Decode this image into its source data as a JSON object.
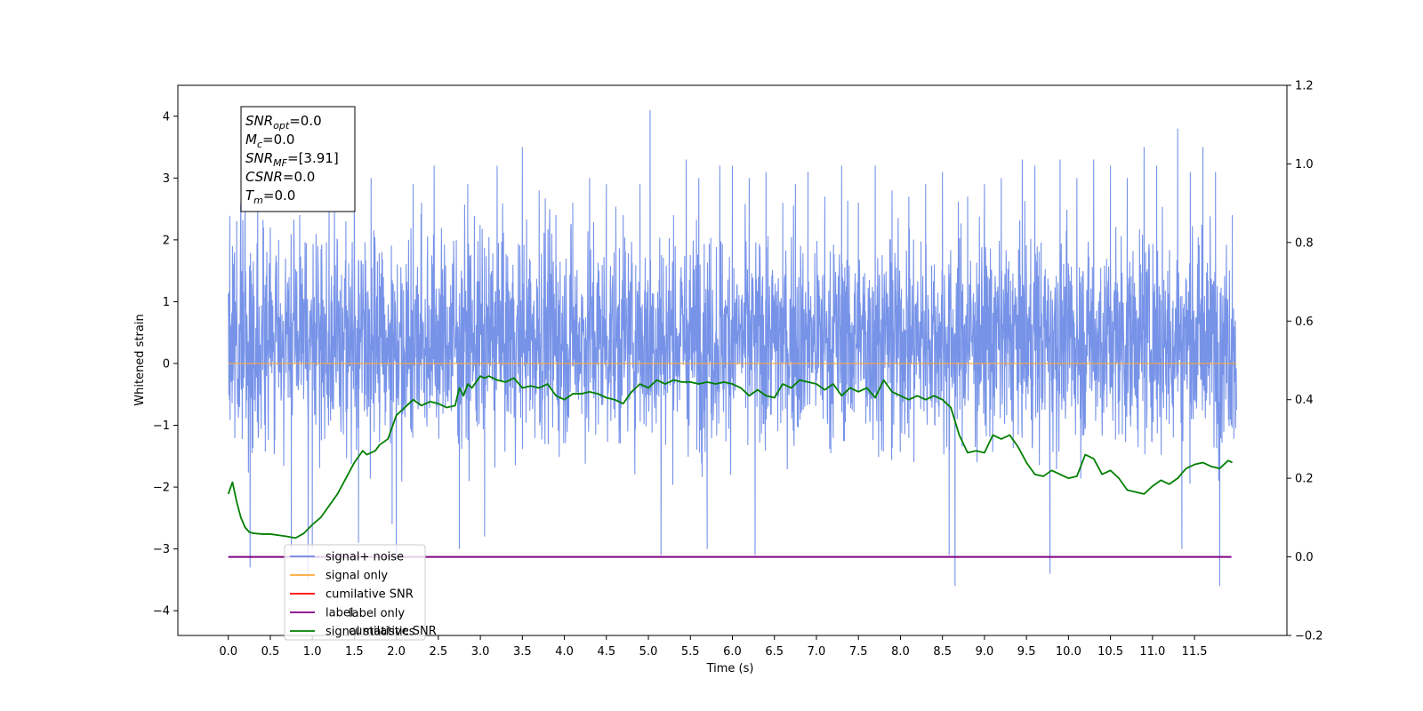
{
  "chart_data": {
    "type": "line",
    "xlabel": "Time (s)",
    "ylabel": "Whitened strain",
    "xlim": [
      -0.6,
      12.6
    ],
    "ylim": [
      -4.4,
      4.5
    ],
    "ylim_right": [
      -0.2,
      1.2
    ],
    "x_ticks": [
      0.0,
      0.5,
      1.0,
      1.5,
      2.0,
      2.5,
      3.0,
      3.5,
      4.0,
      4.5,
      5.0,
      5.5,
      6.0,
      6.5,
      7.0,
      7.5,
      8.0,
      8.5,
      9.0,
      9.5,
      10.0,
      10.5,
      11.0,
      11.5
    ],
    "x_tick_labels": [
      "0.0",
      "0.5",
      "1.0",
      "1.5",
      "2.0",
      "2.5",
      "3.0",
      "3.5",
      "4.0",
      "4.5",
      "5.0",
      "5.5",
      "6.0",
      "6.5",
      "7.0",
      "7.5",
      "8.0",
      "8.5",
      "9.0",
      "9.5",
      "10.0",
      "10.5",
      "11.0",
      "11.5"
    ],
    "y_ticks": [
      -4,
      -3,
      -2,
      -1,
      0,
      1,
      2,
      3,
      4
    ],
    "y_tick_labels": [
      "−4",
      "−3",
      "−2",
      "−1",
      "0",
      "1",
      "2",
      "3",
      "4"
    ],
    "y_right_ticks": [
      -0.2,
      0.0,
      0.2,
      0.4,
      0.6,
      0.8,
      1.0,
      1.2
    ],
    "y_right_tick_labels": [
      "−0.2",
      "0.0",
      "0.2",
      "0.4",
      "0.6",
      "0.8",
      "1.0",
      "1.2"
    ],
    "grid": false,
    "legend_position": "lower-left",
    "series": [
      {
        "name": "signal+ noise",
        "color": "#6b8ae6",
        "axis": "left",
        "x_range": [
          0.0,
          12.0
        ],
        "baseline": 0.4,
        "spread": 1.0,
        "peaks": [
          [
            0.05,
            1.9
          ],
          [
            0.1,
            2.3
          ],
          [
            0.15,
            2.6
          ],
          [
            0.2,
            2.5
          ],
          [
            0.26,
            -3.3
          ],
          [
            0.35,
            2.6
          ],
          [
            0.42,
            2.2
          ],
          [
            0.5,
            2.2
          ],
          [
            0.6,
            2.0
          ],
          [
            0.75,
            -3.0
          ],
          [
            0.85,
            2.4
          ],
          [
            0.95,
            -3.5
          ],
          [
            1.0,
            -3.0
          ],
          [
            1.2,
            2.7
          ],
          [
            1.4,
            2.3
          ],
          [
            1.55,
            -2.9
          ],
          [
            1.7,
            3.0
          ],
          [
            1.95,
            -2.6
          ],
          [
            2.0,
            -3.2
          ],
          [
            2.2,
            2.9
          ],
          [
            2.3,
            2.6
          ],
          [
            2.45,
            3.2
          ],
          [
            2.75,
            -3.0
          ],
          [
            2.85,
            2.9
          ],
          [
            3.05,
            -2.8
          ],
          [
            3.2,
            3.2
          ],
          [
            3.5,
            3.5
          ],
          [
            3.7,
            2.8
          ],
          [
            3.9,
            2.4
          ],
          [
            4.1,
            2.6
          ],
          [
            4.3,
            3.0
          ],
          [
            4.5,
            2.9
          ],
          [
            4.7,
            2.4
          ],
          [
            4.9,
            2.9
          ],
          [
            5.02,
            4.1
          ],
          [
            5.15,
            -3.1
          ],
          [
            5.3,
            2.4
          ],
          [
            5.45,
            3.3
          ],
          [
            5.6,
            3.0
          ],
          [
            5.7,
            -3.0
          ],
          [
            5.85,
            3.2
          ],
          [
            6.0,
            3.2
          ],
          [
            6.2,
            3.0
          ],
          [
            6.27,
            -3.1
          ],
          [
            6.4,
            3.1
          ],
          [
            6.6,
            2.6
          ],
          [
            6.75,
            2.9
          ],
          [
            6.9,
            3.1
          ],
          [
            7.1,
            2.7
          ],
          [
            7.3,
            3.2
          ],
          [
            7.5,
            2.6
          ],
          [
            7.7,
            3.2
          ],
          [
            7.9,
            2.8
          ],
          [
            8.1,
            2.7
          ],
          [
            8.3,
            2.9
          ],
          [
            8.5,
            3.1
          ],
          [
            8.58,
            -3.1
          ],
          [
            8.65,
            -3.6
          ],
          [
            8.8,
            2.7
          ],
          [
            9.0,
            2.9
          ],
          [
            9.2,
            3.0
          ],
          [
            9.45,
            3.3
          ],
          [
            9.6,
            3.2
          ],
          [
            9.78,
            -3.4
          ],
          [
            9.9,
            3.3
          ],
          [
            10.1,
            3.0
          ],
          [
            10.3,
            3.3
          ],
          [
            10.5,
            3.2
          ],
          [
            10.7,
            3.0
          ],
          [
            10.9,
            3.5
          ],
          [
            11.05,
            3.2
          ],
          [
            11.3,
            3.8
          ],
          [
            11.35,
            -3.0
          ],
          [
            11.45,
            3.1
          ],
          [
            11.6,
            3.5
          ],
          [
            11.75,
            3.1
          ],
          [
            11.8,
            -3.6
          ],
          [
            11.95,
            2.4
          ]
        ]
      },
      {
        "name": "signal only",
        "color": "#ffa836",
        "axis": "left",
        "x": [
          0.0,
          12.0
        ],
        "y": [
          0.0,
          0.0
        ]
      },
      {
        "name": "cumilative SNR",
        "color": "#ff0000",
        "axis": "left",
        "x": [],
        "y": []
      },
      {
        "name": "label",
        "color": "#800080",
        "axis": "right",
        "x": [
          0.0,
          11.94
        ],
        "y": [
          0.0,
          0.0
        ]
      },
      {
        "name": "signal statistics",
        "color": "#007f00",
        "axis": "right",
        "x": [
          0.0,
          0.05,
          0.1,
          0.15,
          0.2,
          0.25,
          0.3,
          0.4,
          0.5,
          0.6,
          0.7,
          0.8,
          0.9,
          1.0,
          1.1,
          1.2,
          1.3,
          1.4,
          1.5,
          1.6,
          1.65,
          1.75,
          1.8,
          1.9,
          2.0,
          2.1,
          2.2,
          2.3,
          2.4,
          2.5,
          2.6,
          2.7,
          2.75,
          2.8,
          2.85,
          2.9,
          3.0,
          3.05,
          3.1,
          3.2,
          3.3,
          3.4,
          3.5,
          3.6,
          3.7,
          3.8,
          3.9,
          4.0,
          4.1,
          4.2,
          4.3,
          4.4,
          4.5,
          4.6,
          4.7,
          4.8,
          4.9,
          5.0,
          5.1,
          5.2,
          5.3,
          5.4,
          5.5,
          5.6,
          5.7,
          5.8,
          5.9,
          6.0,
          6.1,
          6.2,
          6.3,
          6.4,
          6.5,
          6.6,
          6.7,
          6.8,
          6.9,
          7.0,
          7.1,
          7.2,
          7.3,
          7.4,
          7.5,
          7.6,
          7.7,
          7.8,
          7.9,
          8.0,
          8.1,
          8.2,
          8.3,
          8.4,
          8.5,
          8.6,
          8.7,
          8.8,
          8.9,
          9.0,
          9.1,
          9.2,
          9.3,
          9.4,
          9.5,
          9.6,
          9.7,
          9.8,
          9.9,
          10.0,
          10.1,
          10.2,
          10.3,
          10.4,
          10.5,
          10.6,
          10.7,
          10.8,
          10.9,
          11.0,
          11.1,
          11.2,
          11.3,
          11.4,
          11.5,
          11.6,
          11.7,
          11.8,
          11.9,
          11.95
        ],
        "y": [
          0.16,
          0.19,
          0.14,
          0.1,
          0.075,
          0.063,
          0.06,
          0.058,
          0.058,
          0.055,
          0.052,
          0.048,
          0.06,
          0.082,
          0.1,
          0.13,
          0.16,
          0.2,
          0.24,
          0.27,
          0.26,
          0.27,
          0.285,
          0.3,
          0.36,
          0.38,
          0.4,
          0.385,
          0.395,
          0.39,
          0.38,
          0.385,
          0.43,
          0.41,
          0.44,
          0.43,
          0.46,
          0.455,
          0.46,
          0.45,
          0.445,
          0.455,
          0.43,
          0.435,
          0.43,
          0.44,
          0.41,
          0.4,
          0.415,
          0.415,
          0.42,
          0.415,
          0.405,
          0.4,
          0.39,
          0.42,
          0.44,
          0.43,
          0.45,
          0.44,
          0.45,
          0.445,
          0.445,
          0.44,
          0.445,
          0.44,
          0.445,
          0.44,
          0.43,
          0.41,
          0.425,
          0.41,
          0.405,
          0.44,
          0.43,
          0.45,
          0.445,
          0.44,
          0.425,
          0.44,
          0.41,
          0.43,
          0.42,
          0.43,
          0.405,
          0.45,
          0.42,
          0.41,
          0.4,
          0.41,
          0.4,
          0.41,
          0.4,
          0.38,
          0.31,
          0.265,
          0.27,
          0.265,
          0.31,
          0.3,
          0.31,
          0.28,
          0.24,
          0.21,
          0.205,
          0.22,
          0.21,
          0.2,
          0.205,
          0.26,
          0.25,
          0.21,
          0.22,
          0.2,
          0.17,
          0.165,
          0.16,
          0.18,
          0.195,
          0.185,
          0.2,
          0.225,
          0.235,
          0.24,
          0.23,
          0.225,
          0.245,
          0.24
        ]
      }
    ],
    "stats_box": [
      {
        "name": "SNR",
        "sub": "opt",
        "value": "=0.0"
      },
      {
        "name": "M",
        "sub": "c",
        "value": "=0.0"
      },
      {
        "name": "SNR",
        "sub": "MF",
        "value": "=[3.91]"
      },
      {
        "name": "CSNR",
        "sub": "",
        "value": "=0.0"
      },
      {
        "name": "T",
        "sub": "m",
        "value": "=0.0"
      }
    ],
    "legend_ghost_labels": [
      "label only",
      "cumilative SNR"
    ]
  }
}
